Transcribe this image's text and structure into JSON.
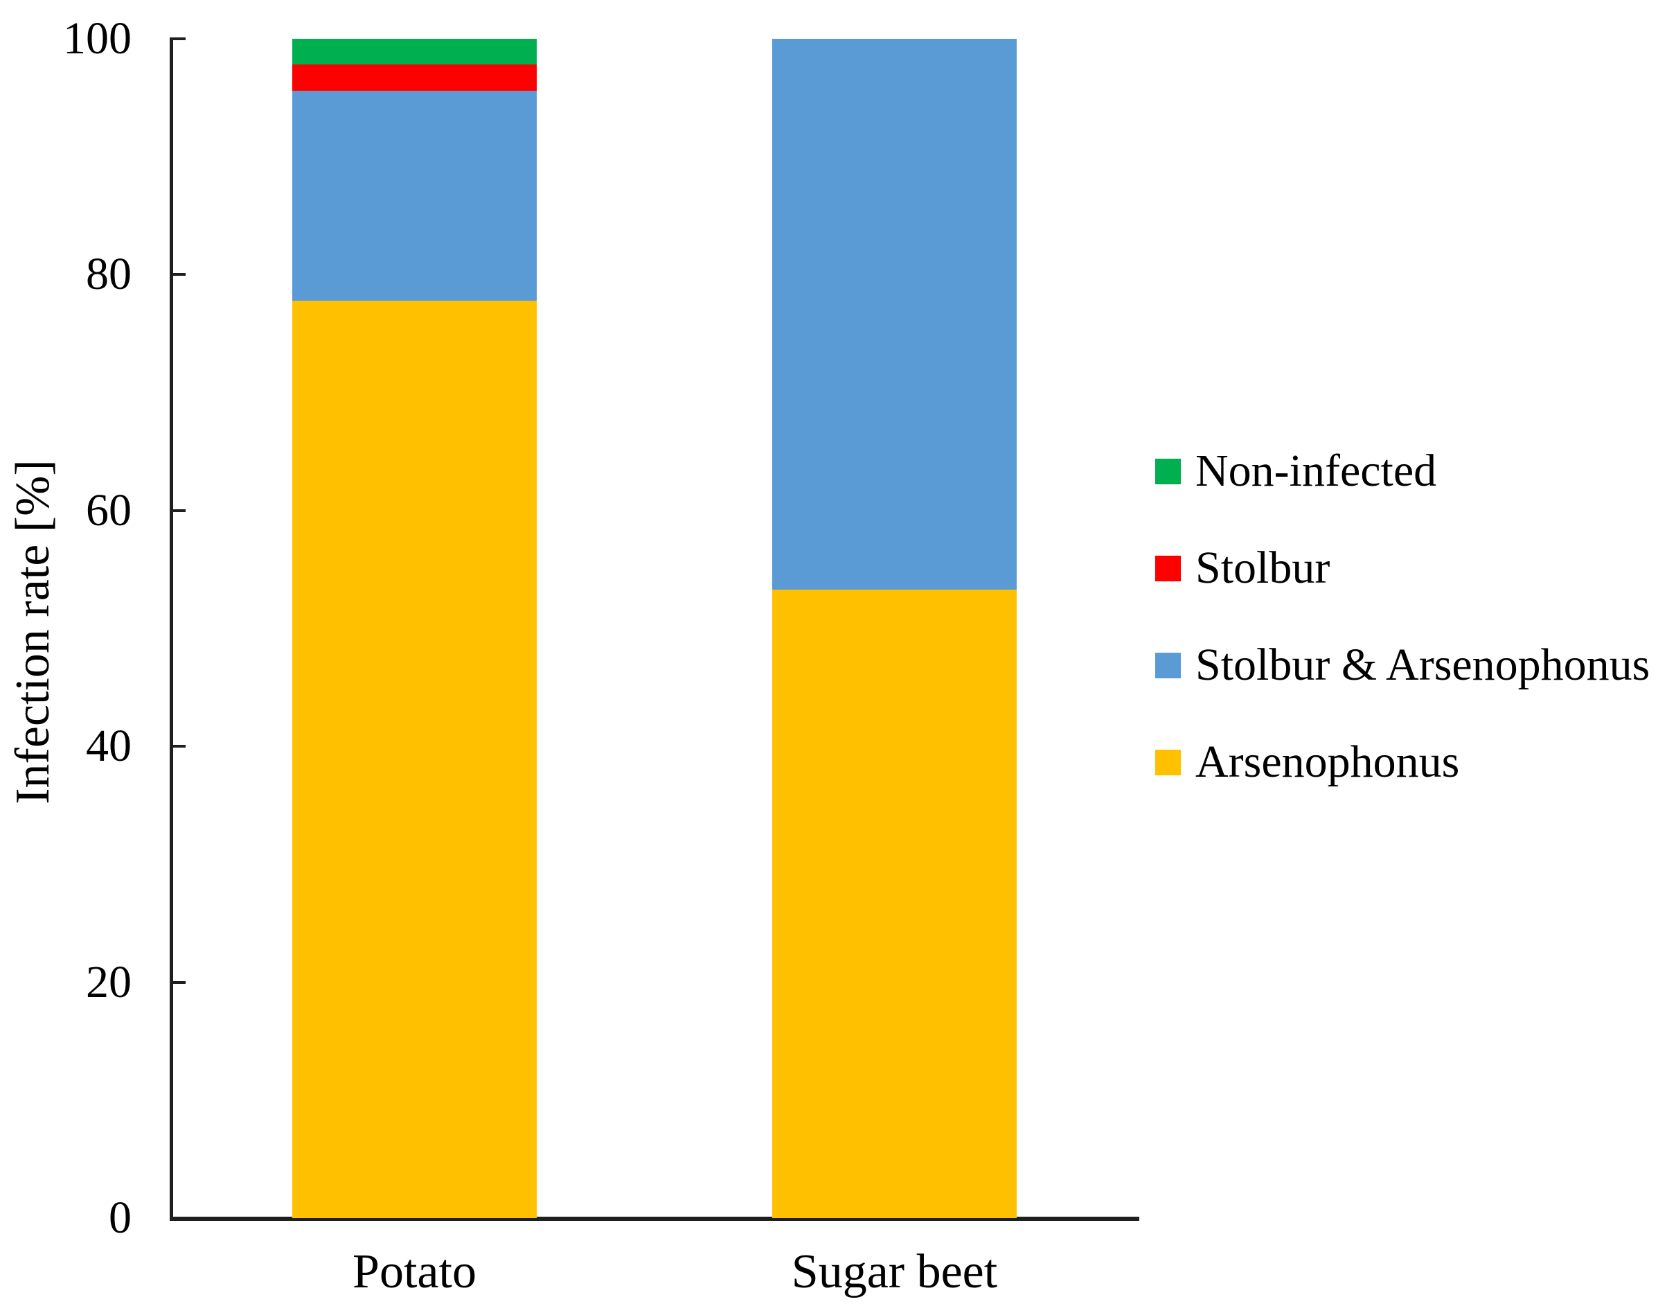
{
  "chart_data": {
    "type": "bar",
    "stacked": true,
    "orientation": "vertical",
    "title": "",
    "xlabel": "",
    "ylabel": "Infection rate [%]",
    "units": "%",
    "ylim": [
      0,
      100
    ],
    "yticks": [
      0,
      20,
      40,
      60,
      80,
      100
    ],
    "grid": false,
    "legend_position": "right",
    "categories": [
      "Potato",
      "Sugar beet"
    ],
    "series": [
      {
        "name": "Arsenophonus",
        "color": "#FFC000",
        "values": [
          77.8,
          53.3
        ]
      },
      {
        "name": "Stolbur & Arsenophonus",
        "color": "#5B9BD5",
        "values": [
          17.8,
          46.7
        ]
      },
      {
        "name": "Stolbur",
        "color": "#FF0000",
        "values": [
          2.2,
          0
        ]
      },
      {
        "name": "Non-infected",
        "color": "#00B050",
        "values": [
          2.2,
          0
        ]
      }
    ],
    "legend": [
      "Non-infected",
      "Stolbur",
      "Stolbur & Arsenophonus",
      "Arsenophonus"
    ]
  },
  "colors": {
    "axis": "#1f1f1f",
    "text": "#000000",
    "background": "#ffffff"
  }
}
